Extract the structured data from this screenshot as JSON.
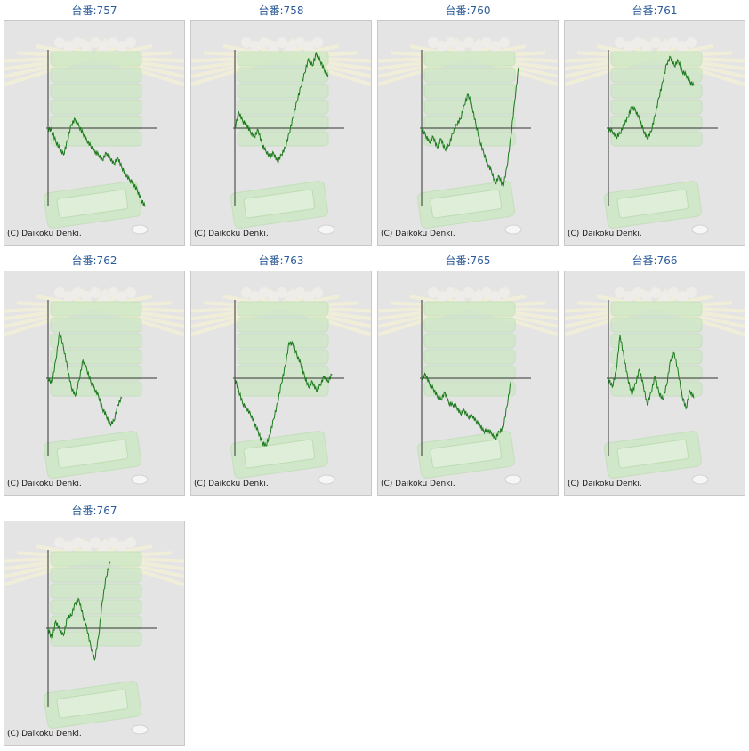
{
  "colors": {
    "line": "#1d7a1d",
    "axis": "#333333",
    "title": "#2a5a98",
    "panel_bg": "#e4e4e4",
    "art": "#c9e8c0"
  },
  "charts": [
    {
      "title": "台番:757",
      "copyright": "(C) Daikoku Denki."
    },
    {
      "title": "台番:758",
      "copyright": "(C) Daikoku Denki."
    },
    {
      "title": "台番:760",
      "copyright": "(C) Daikoku Denki."
    },
    {
      "title": "台番:761",
      "copyright": "(C) Daikoku Denki."
    },
    {
      "title": "台番:762",
      "copyright": "(C) Daikoku Denki."
    },
    {
      "title": "台番:763",
      "copyright": "(C) Daikoku Denki."
    },
    {
      "title": "台番:765",
      "copyright": "(C) Daikoku Denki."
    },
    {
      "title": "台番:766",
      "copyright": "(C) Daikoku Denki."
    },
    {
      "title": "台番:767",
      "copyright": "(C) Daikoku Denki."
    }
  ],
  "chart_data": [
    {
      "type": "line",
      "title": "台番:757",
      "xlabel": "",
      "ylabel": "",
      "grid": false,
      "series": [
        {
          "values": [
            0,
            -3,
            -15,
            -23,
            -30,
            -14,
            4,
            10,
            2,
            -6,
            -14,
            -20,
            -26,
            -30,
            -36,
            -28,
            -34,
            -40,
            -33,
            -44,
            -52,
            -58,
            -62,
            -70,
            -80,
            -88
          ]
        }
      ]
    },
    {
      "type": "line",
      "title": "台番:758",
      "xlabel": "",
      "ylabel": "",
      "grid": false,
      "series": [
        {
          "values": [
            0,
            18,
            8,
            4,
            -4,
            -10,
            -2,
            -18,
            -26,
            -32,
            -28,
            -38,
            -30,
            -22,
            -6,
            12,
            30,
            46,
            62,
            78,
            70,
            84,
            76,
            66,
            58
          ]
        }
      ]
    },
    {
      "type": "line",
      "title": "台番:760",
      "xlabel": "",
      "ylabel": "",
      "grid": false,
      "series": [
        {
          "values": [
            0,
            -8,
            -16,
            -10,
            -22,
            -12,
            -24,
            -20,
            -6,
            4,
            10,
            26,
            38,
            24,
            4,
            -14,
            -28,
            -40,
            -48,
            -62,
            -54,
            -66,
            -44,
            -10,
            30,
            68
          ]
        }
      ]
    },
    {
      "type": "line",
      "title": "台番:761",
      "xlabel": "",
      "ylabel": "",
      "grid": false,
      "series": [
        {
          "values": [
            0,
            -4,
            -10,
            -6,
            4,
            12,
            24,
            20,
            10,
            -2,
            -12,
            -4,
            14,
            34,
            52,
            72,
            80,
            70,
            76,
            64,
            60,
            52,
            48
          ]
        }
      ]
    },
    {
      "type": "line",
      "title": "台番:762",
      "xlabel": "",
      "ylabel": "",
      "grid": false,
      "series": [
        {
          "values": [
            0,
            -6,
            20,
            52,
            34,
            12,
            -10,
            -20,
            -2,
            20,
            10,
            -4,
            -12,
            -20,
            -34,
            -42,
            -52,
            -48,
            -30,
            -22
          ]
        }
      ]
    },
    {
      "type": "line",
      "title": "台番:763",
      "xlabel": "",
      "ylabel": "",
      "grid": false,
      "series": [
        {
          "values": [
            0,
            -14,
            -28,
            -34,
            -40,
            -50,
            -60,
            -72,
            -76,
            -64,
            -46,
            -28,
            -6,
            14,
            40,
            38,
            26,
            16,
            2,
            -10,
            -4,
            -14,
            -8,
            2,
            -4,
            4
          ]
        }
      ]
    },
    {
      "type": "line",
      "title": "台番:765",
      "xlabel": "",
      "ylabel": "",
      "grid": false,
      "series": [
        {
          "values": [
            0,
            4,
            -6,
            -12,
            -20,
            -24,
            -16,
            -28,
            -30,
            -32,
            -40,
            -36,
            -44,
            -42,
            -48,
            -52,
            -60,
            -58,
            -62,
            -68,
            -60,
            -56,
            -32,
            -4
          ]
        }
      ]
    },
    {
      "type": "line",
      "title": "台番:766",
      "xlabel": "",
      "ylabel": "",
      "grid": false,
      "series": [
        {
          "values": [
            0,
            -10,
            8,
            48,
            24,
            0,
            -18,
            -6,
            10,
            -8,
            -30,
            -16,
            2,
            -16,
            -24,
            -8,
            20,
            28,
            6,
            -20,
            -34,
            -14,
            -22
          ]
        }
      ]
    },
    {
      "type": "line",
      "title": "台番:767",
      "xlabel": "",
      "ylabel": "",
      "grid": false,
      "series": [
        {
          "values": [
            0,
            -12,
            8,
            -2,
            -8,
            12,
            14,
            28,
            32,
            14,
            0,
            -20,
            -36,
            -10,
            30,
            58,
            74
          ]
        }
      ]
    }
  ]
}
